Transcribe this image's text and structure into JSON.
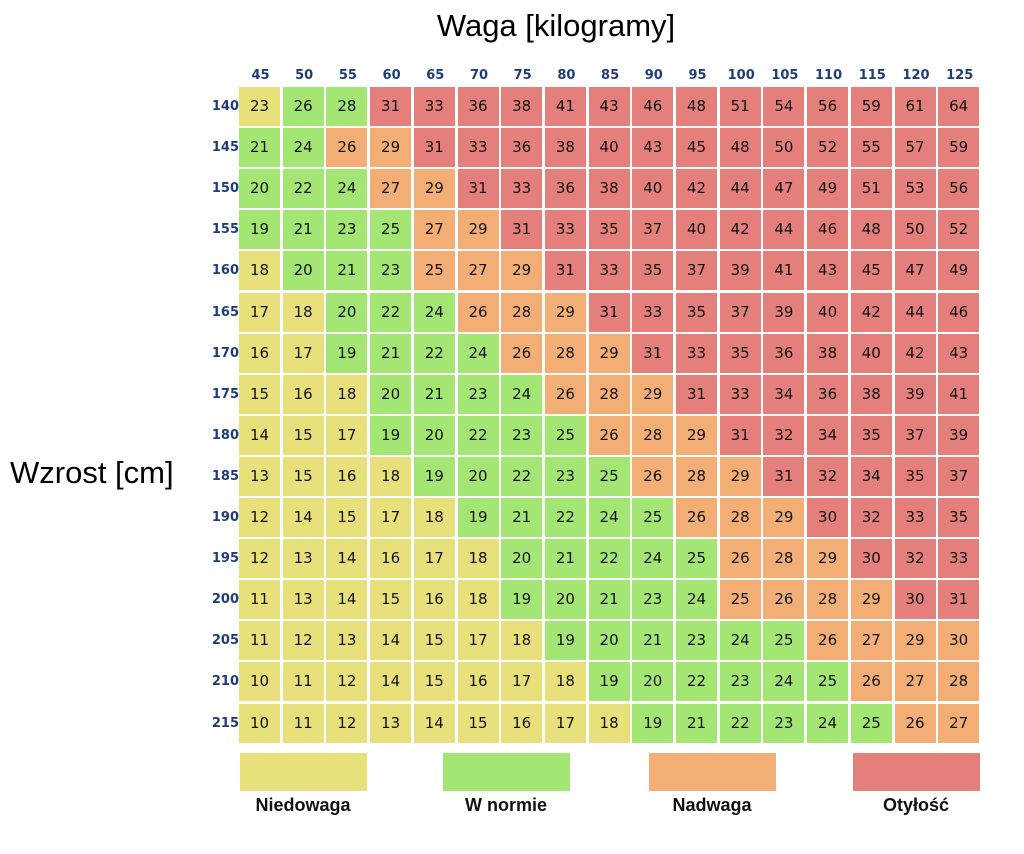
{
  "chart_data": {
    "type": "heatmap",
    "title": "Waga [kilogramy]",
    "ylabel": "Wzrost [cm]",
    "x": [
      "45",
      "50",
      "55",
      "60",
      "65",
      "70",
      "75",
      "80",
      "85",
      "90",
      "95",
      "100",
      "105",
      "110",
      "115",
      "120",
      "125"
    ],
    "y": [
      "140",
      "145",
      "150",
      "155",
      "160",
      "165",
      "170",
      "175",
      "180",
      "185",
      "190",
      "195",
      "200",
      "205",
      "210",
      "215"
    ],
    "values": [
      [
        23,
        26,
        28,
        31,
        33,
        36,
        38,
        41,
        43,
        46,
        48,
        51,
        54,
        56,
        59,
        61,
        64
      ],
      [
        21,
        24,
        26,
        29,
        31,
        33,
        36,
        38,
        40,
        43,
        45,
        48,
        50,
        52,
        55,
        57,
        59
      ],
      [
        20,
        22,
        24,
        27,
        29,
        31,
        33,
        36,
        38,
        40,
        42,
        44,
        47,
        49,
        51,
        53,
        56
      ],
      [
        19,
        21,
        23,
        25,
        27,
        29,
        31,
        33,
        35,
        37,
        40,
        42,
        44,
        46,
        48,
        50,
        52
      ],
      [
        18,
        20,
        21,
        23,
        25,
        27,
        29,
        31,
        33,
        35,
        37,
        39,
        41,
        43,
        45,
        47,
        49
      ],
      [
        17,
        18,
        20,
        22,
        24,
        26,
        28,
        29,
        31,
        33,
        35,
        37,
        39,
        40,
        42,
        44,
        46
      ],
      [
        16,
        17,
        19,
        21,
        22,
        24,
        26,
        28,
        29,
        31,
        33,
        35,
        36,
        38,
        40,
        42,
        43
      ],
      [
        15,
        16,
        18,
        20,
        21,
        23,
        24,
        26,
        28,
        29,
        31,
        33,
        34,
        36,
        38,
        39,
        41
      ],
      [
        14,
        15,
        17,
        19,
        20,
        22,
        23,
        25,
        26,
        28,
        29,
        31,
        32,
        34,
        35,
        37,
        39
      ],
      [
        13,
        15,
        16,
        18,
        19,
        20,
        22,
        23,
        25,
        26,
        28,
        29,
        31,
        32,
        34,
        35,
        37
      ],
      [
        12,
        14,
        15,
        17,
        18,
        19,
        21,
        22,
        24,
        25,
        26,
        28,
        29,
        30,
        32,
        33,
        35
      ],
      [
        12,
        13,
        14,
        16,
        17,
        18,
        20,
        21,
        22,
        24,
        25,
        26,
        28,
        29,
        30,
        32,
        33
      ],
      [
        11,
        13,
        14,
        15,
        16,
        18,
        19,
        20,
        21,
        23,
        24,
        25,
        26,
        28,
        29,
        30,
        31
      ],
      [
        11,
        12,
        13,
        14,
        15,
        17,
        18,
        19,
        20,
        21,
        23,
        24,
        25,
        26,
        27,
        29,
        30
      ],
      [
        10,
        11,
        12,
        14,
        15,
        16,
        17,
        18,
        19,
        20,
        22,
        23,
        24,
        25,
        26,
        27,
        28
      ],
      [
        10,
        11,
        12,
        13,
        14,
        15,
        16,
        17,
        18,
        19,
        21,
        22,
        23,
        24,
        25,
        26,
        27
      ]
    ],
    "categories": [
      [
        0,
        1,
        1,
        3,
        3,
        3,
        3,
        3,
        3,
        3,
        3,
        3,
        3,
        3,
        3,
        3,
        3
      ],
      [
        1,
        1,
        2,
        2,
        3,
        3,
        3,
        3,
        3,
        3,
        3,
        3,
        3,
        3,
        3,
        3,
        3
      ],
      [
        1,
        1,
        1,
        2,
        2,
        3,
        3,
        3,
        3,
        3,
        3,
        3,
        3,
        3,
        3,
        3,
        3
      ],
      [
        1,
        1,
        1,
        1,
        2,
        2,
        3,
        3,
        3,
        3,
        3,
        3,
        3,
        3,
        3,
        3,
        3
      ],
      [
        0,
        1,
        1,
        1,
        2,
        2,
        2,
        3,
        3,
        3,
        3,
        3,
        3,
        3,
        3,
        3,
        3
      ],
      [
        0,
        0,
        1,
        1,
        1,
        2,
        2,
        2,
        3,
        3,
        3,
        3,
        3,
        3,
        3,
        3,
        3
      ],
      [
        0,
        0,
        1,
        1,
        1,
        1,
        2,
        2,
        2,
        3,
        3,
        3,
        3,
        3,
        3,
        3,
        3
      ],
      [
        0,
        0,
        0,
        1,
        1,
        1,
        1,
        2,
        2,
        2,
        3,
        3,
        3,
        3,
        3,
        3,
        3
      ],
      [
        0,
        0,
        0,
        1,
        1,
        1,
        1,
        1,
        2,
        2,
        2,
        3,
        3,
        3,
        3,
        3,
        3
      ],
      [
        0,
        0,
        0,
        0,
        1,
        1,
        1,
        1,
        1,
        2,
        2,
        2,
        3,
        3,
        3,
        3,
        3
      ],
      [
        0,
        0,
        0,
        0,
        0,
        1,
        1,
        1,
        1,
        1,
        2,
        2,
        2,
        3,
        3,
        3,
        3
      ],
      [
        0,
        0,
        0,
        0,
        0,
        0,
        1,
        1,
        1,
        1,
        1,
        2,
        2,
        2,
        3,
        3,
        3
      ],
      [
        0,
        0,
        0,
        0,
        0,
        0,
        1,
        1,
        1,
        1,
        1,
        2,
        2,
        2,
        2,
        3,
        3
      ],
      [
        0,
        0,
        0,
        0,
        0,
        0,
        0,
        1,
        1,
        1,
        1,
        1,
        1,
        2,
        2,
        2,
        2
      ],
      [
        0,
        0,
        0,
        0,
        0,
        0,
        0,
        0,
        1,
        1,
        1,
        1,
        1,
        1,
        2,
        2,
        2
      ],
      [
        0,
        0,
        0,
        0,
        0,
        0,
        0,
        0,
        0,
        1,
        1,
        1,
        1,
        1,
        1,
        2,
        2
      ]
    ],
    "legend": [
      {
        "label": "Niedowaga",
        "color": "#e8e07a"
      },
      {
        "label": "W normie",
        "color": "#a3e673"
      },
      {
        "label": "Nadwaga",
        "color": "#f2ae74"
      },
      {
        "label": "Otyłość",
        "color": "#e57f7c"
      }
    ],
    "grid": false,
    "legend_position": "bottom"
  }
}
